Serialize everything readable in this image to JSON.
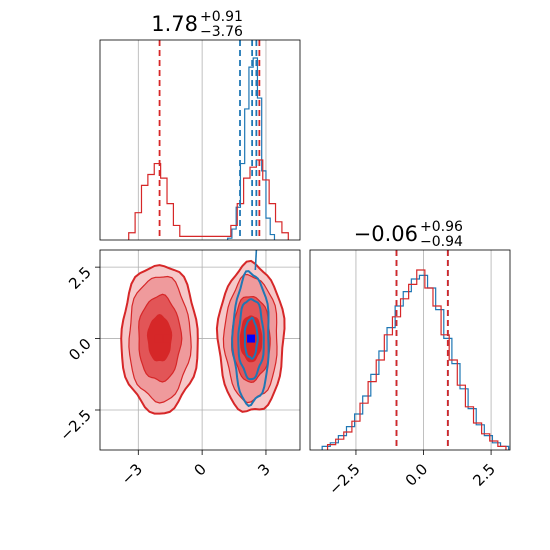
{
  "colors": {
    "blue": "#1f77b4",
    "red": "#d62728",
    "red_fill": "#f1a2a4",
    "red_dark": "#d62728",
    "grid": "#b0b0b0",
    "peak": "#0000ff"
  },
  "chart_data": [
    {
      "type": "histogram",
      "panel": "x-marginal",
      "title": {
        "value": "1.78",
        "upper": "+0.91",
        "lower": "−3.76"
      },
      "xlim": [
        -4.8,
        4.6
      ],
      "grid": true,
      "series": [
        {
          "color": "#1f77b4",
          "bins": [
            [
              1.3,
              0.01
            ],
            [
              1.5,
              0.06
            ],
            [
              1.7,
              0.18
            ],
            [
              1.9,
              0.42
            ],
            [
              2.1,
              0.72
            ],
            [
              2.3,
              0.95
            ],
            [
              2.5,
              1.0
            ],
            [
              2.7,
              0.78
            ],
            [
              2.9,
              0.38
            ],
            [
              3.1,
              0.12
            ],
            [
              3.3,
              0.03
            ]
          ]
        },
        {
          "color": "#d62728",
          "bins": [
            [
              -3.3,
              0.04
            ],
            [
              -3.0,
              0.15
            ],
            [
              -2.7,
              0.3
            ],
            [
              -2.4,
              0.36
            ],
            [
              -2.1,
              0.42
            ],
            [
              -1.8,
              0.34
            ],
            [
              -1.5,
              0.2
            ],
            [
              -1.2,
              0.08
            ],
            [
              -0.9,
              0.02
            ],
            [
              1.2,
              0.02
            ],
            [
              1.5,
              0.08
            ],
            [
              1.8,
              0.2
            ],
            [
              2.1,
              0.34
            ],
            [
              2.4,
              0.4
            ],
            [
              2.7,
              0.44
            ],
            [
              3.0,
              0.33
            ],
            [
              3.3,
              0.2
            ],
            [
              3.6,
              0.1
            ],
            [
              3.9,
              0.04
            ]
          ]
        }
      ],
      "quantile_lines": [
        {
          "x": -2.0,
          "color": "#d62728"
        },
        {
          "x": 1.78,
          "color": "#1f77b4"
        },
        {
          "x": 2.35,
          "color": "#1f77b4"
        },
        {
          "x": 2.55,
          "color": "#1f77b4"
        },
        {
          "x": 2.69,
          "color": "#d62728"
        }
      ]
    },
    {
      "type": "contour",
      "panel": "joint",
      "xlim": [
        -4.8,
        4.6
      ],
      "ylim": [
        -3.9,
        3.1
      ],
      "x_ticks": [
        "−3",
        "0",
        "3"
      ],
      "x_tick_values": [
        -3,
        0,
        3
      ],
      "y_ticks": [
        "2.5",
        "0.0",
        "−2.5"
      ],
      "y_tick_values": [
        2.5,
        0.0,
        -2.5
      ],
      "grid": true,
      "red_modes": [
        {
          "cx": -2.0,
          "cy": 0.0,
          "rx": [
            0.55,
            1.0,
            1.45,
            1.8
          ],
          "ry": [
            0.8,
            1.5,
            2.2,
            2.6
          ]
        },
        {
          "cx": 2.3,
          "cy": 0.0,
          "rx": [
            0.5,
            0.9,
            1.25,
            1.55
          ],
          "ry": [
            0.8,
            1.5,
            2.2,
            2.6
          ]
        }
      ],
      "blue_mode": {
        "cx": 2.3,
        "cy": 0.0,
        "rx": [
          0.3,
          0.6,
          0.85
        ],
        "ry": [
          0.7,
          1.4,
          2.3
        ]
      },
      "peaks": [
        {
          "x": -2.05,
          "y": 0.0,
          "color": "#d62728"
        },
        {
          "x": -1.65,
          "y": 0.0,
          "color": "#d62728"
        },
        {
          "x": 2.3,
          "y": 0.0,
          "color": "#0000ff"
        }
      ]
    },
    {
      "type": "histogram",
      "panel": "y-marginal",
      "title": {
        "value": "−0.06",
        "upper": "+0.96",
        "lower": "−0.94"
      },
      "xlim": [
        -4.2,
        3.2
      ],
      "x_ticks": [
        "−2.5",
        "0.0",
        "2.5"
      ],
      "x_tick_values": [
        -2.5,
        0.0,
        2.5
      ],
      "grid": true,
      "series": [
        {
          "color": "#1f77b4",
          "bins": [
            [
              -3.6,
              0.02
            ],
            [
              -3.3,
              0.04
            ],
            [
              -3.0,
              0.08
            ],
            [
              -2.7,
              0.13
            ],
            [
              -2.4,
              0.2
            ],
            [
              -2.1,
              0.3
            ],
            [
              -1.8,
              0.42
            ],
            [
              -1.5,
              0.55
            ],
            [
              -1.2,
              0.68
            ],
            [
              -0.9,
              0.8
            ],
            [
              -0.6,
              0.88
            ],
            [
              -0.3,
              0.95
            ],
            [
              0.0,
              0.97
            ],
            [
              0.3,
              0.9
            ],
            [
              0.6,
              0.78
            ],
            [
              0.9,
              0.62
            ],
            [
              1.2,
              0.48
            ],
            [
              1.5,
              0.34
            ],
            [
              1.8,
              0.23
            ],
            [
              2.1,
              0.14
            ],
            [
              2.4,
              0.08
            ],
            [
              2.7,
              0.04
            ],
            [
              3.0,
              0.02
            ]
          ]
        },
        {
          "color": "#d62728",
          "bins": [
            [
              -3.4,
              0.03
            ],
            [
              -3.1,
              0.06
            ],
            [
              -2.8,
              0.1
            ],
            [
              -2.5,
              0.16
            ],
            [
              -2.2,
              0.26
            ],
            [
              -1.9,
              0.38
            ],
            [
              -1.6,
              0.5
            ],
            [
              -1.3,
              0.64
            ],
            [
              -1.0,
              0.74
            ],
            [
              -0.7,
              0.84
            ],
            [
              -0.4,
              0.92
            ],
            [
              -0.1,
              1.0
            ],
            [
              0.2,
              0.9
            ],
            [
              0.5,
              0.8
            ],
            [
              0.8,
              0.64
            ],
            [
              1.1,
              0.5
            ],
            [
              1.4,
              0.36
            ],
            [
              1.7,
              0.24
            ],
            [
              2.0,
              0.15
            ],
            [
              2.3,
              0.09
            ],
            [
              2.6,
              0.05
            ],
            [
              2.9,
              0.02
            ]
          ]
        }
      ],
      "quantile_lines": [
        {
          "x": -1.0,
          "color": "#1f77b4"
        },
        {
          "x": 0.9,
          "color": "#1f77b4"
        },
        {
          "x": -1.0,
          "color": "#d62728"
        },
        {
          "x": 0.9,
          "color": "#d62728"
        }
      ]
    }
  ]
}
